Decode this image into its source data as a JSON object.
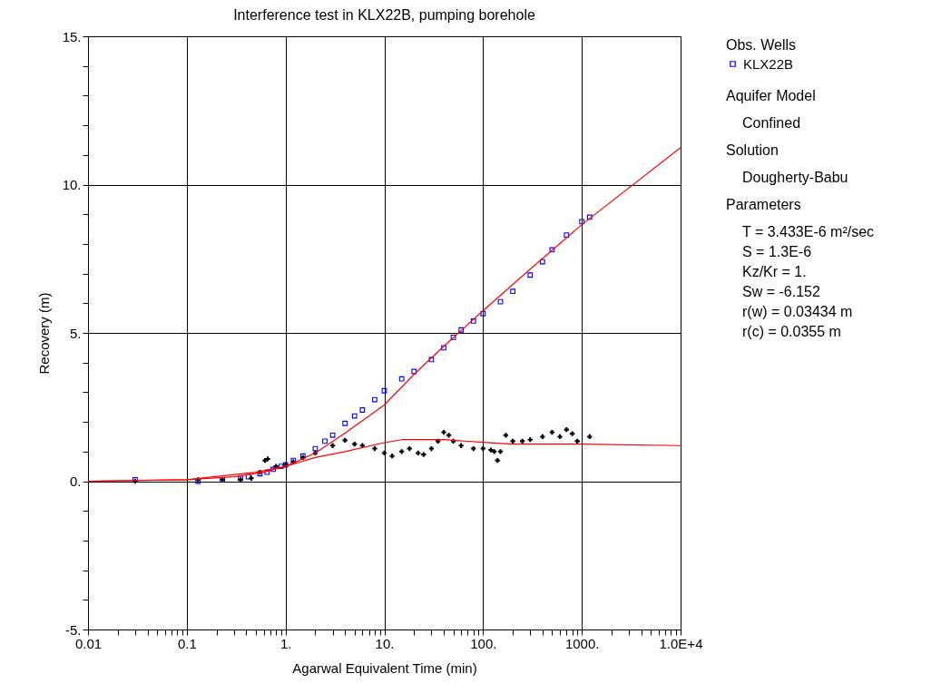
{
  "chart_data": {
    "type": "scatter",
    "title": "Interference test in KLX22B,  pumping borehole",
    "xlabel": "Agarwal Equivalent Time (min)",
    "ylabel": "Recovery (m)",
    "legend_title": "Obs. Wells",
    "legend": "right",
    "log": "x",
    "grid": true,
    "xlim": [
      0.01,
      10000
    ],
    "ylim": [
      -5,
      15
    ],
    "xticks": [
      {
        "value": 0.01,
        "label": "0.01"
      },
      {
        "value": 0.02,
        "label": null
      },
      {
        "value": 0.03,
        "label": null
      },
      {
        "value": 0.04,
        "label": null
      },
      {
        "value": 0.05,
        "label": null
      },
      {
        "value": 0.06,
        "label": null
      },
      {
        "value": 0.07,
        "label": null
      },
      {
        "value": 0.08,
        "label": null
      },
      {
        "value": 0.09,
        "label": null
      },
      {
        "value": 0.1,
        "label": "0.1"
      },
      {
        "value": 0.2,
        "label": null
      },
      {
        "value": 0.3,
        "label": null
      },
      {
        "value": 0.4,
        "label": null
      },
      {
        "value": 0.5,
        "label": null
      },
      {
        "value": 0.6,
        "label": null
      },
      {
        "value": 0.7,
        "label": null
      },
      {
        "value": 0.8,
        "label": null
      },
      {
        "value": 0.9,
        "label": null
      },
      {
        "value": 1,
        "label": "1."
      },
      {
        "value": 2,
        "label": null
      },
      {
        "value": 3,
        "label": null
      },
      {
        "value": 4,
        "label": null
      },
      {
        "value": 5,
        "label": null
      },
      {
        "value": 6,
        "label": null
      },
      {
        "value": 7,
        "label": null
      },
      {
        "value": 8,
        "label": null
      },
      {
        "value": 9,
        "label": null
      },
      {
        "value": 10,
        "label": "10."
      },
      {
        "value": 20,
        "label": null
      },
      {
        "value": 30,
        "label": null
      },
      {
        "value": 40,
        "label": null
      },
      {
        "value": 50,
        "label": null
      },
      {
        "value": 60,
        "label": null
      },
      {
        "value": 70,
        "label": null
      },
      {
        "value": 80,
        "label": null
      },
      {
        "value": 90,
        "label": null
      },
      {
        "value": 100,
        "label": "100."
      },
      {
        "value": 200,
        "label": null
      },
      {
        "value": 300,
        "label": null
      },
      {
        "value": 400,
        "label": null
      },
      {
        "value": 500,
        "label": null
      },
      {
        "value": 600,
        "label": null
      },
      {
        "value": 700,
        "label": null
      },
      {
        "value": 800,
        "label": null
      },
      {
        "value": 900,
        "label": null
      },
      {
        "value": 1000,
        "label": "1000."
      },
      {
        "value": 2000,
        "label": null
      },
      {
        "value": 3000,
        "label": null
      },
      {
        "value": 4000,
        "label": null
      },
      {
        "value": 5000,
        "label": null
      },
      {
        "value": 6000,
        "label": null
      },
      {
        "value": 7000,
        "label": null
      },
      {
        "value": 8000,
        "label": null
      },
      {
        "value": 9000,
        "label": null
      },
      {
        "value": 10000,
        "label": "1.0E+4"
      }
    ],
    "yticks": [
      {
        "value": -5,
        "label": "-5."
      },
      {
        "value": -4,
        "label": null
      },
      {
        "value": -3,
        "label": null
      },
      {
        "value": -2,
        "label": null
      },
      {
        "value": -1,
        "label": null
      },
      {
        "value": 0,
        "label": "0."
      },
      {
        "value": 1,
        "label": null
      },
      {
        "value": 2,
        "label": null
      },
      {
        "value": 3,
        "label": null
      },
      {
        "value": 4,
        "label": null
      },
      {
        "value": 5,
        "label": "5."
      },
      {
        "value": 6,
        "label": null
      },
      {
        "value": 7,
        "label": null
      },
      {
        "value": 8,
        "label": null
      },
      {
        "value": 9,
        "label": null
      },
      {
        "value": 10,
        "label": "10."
      },
      {
        "value": 11,
        "label": null
      },
      {
        "value": 12,
        "label": null
      },
      {
        "value": 13,
        "label": null
      },
      {
        "value": 14,
        "label": null
      },
      {
        "value": 15,
        "label": "15."
      }
    ],
    "series": [
      {
        "name": "KLX22B",
        "marker": "square",
        "color": "#0000ff",
        "x": [
          0.03,
          0.13,
          0.23,
          0.35,
          0.42,
          0.55,
          0.65,
          0.75,
          0.9,
          1.0,
          1.2,
          1.5,
          2,
          2.5,
          3,
          4,
          5,
          6,
          8,
          10,
          15,
          20,
          30,
          40,
          50,
          60,
          80,
          100,
          150,
          200,
          300,
          400,
          500,
          700,
          1000,
          1200
        ],
        "values": [
          0.05,
          0.0,
          0.05,
          0.1,
          0.15,
          0.25,
          0.3,
          0.4,
          0.5,
          0.55,
          0.7,
          0.85,
          1.1,
          1.35,
          1.55,
          1.95,
          2.2,
          2.4,
          2.75,
          3.05,
          3.45,
          3.7,
          4.1,
          4.5,
          4.85,
          5.1,
          5.4,
          5.65,
          6.05,
          6.4,
          6.95,
          7.4,
          7.8,
          8.3,
          8.75,
          8.9
        ]
      },
      {
        "marker": "cross",
        "color": "#000000",
        "x": [
          0.03,
          0.13,
          0.23,
          0.35,
          0.45,
          0.55,
          0.62,
          0.66,
          0.8,
          1.0,
          1.2,
          1.5,
          2,
          3,
          4,
          5,
          6,
          8,
          10,
          12,
          15,
          18,
          22,
          25,
          30,
          35,
          40,
          45,
          50,
          60,
          80,
          100,
          120,
          130,
          140,
          150,
          170,
          200,
          250,
          300,
          400,
          500,
          600,
          700,
          800,
          900,
          1200
        ],
        "values": [
          0.0,
          0.05,
          0.05,
          0.05,
          0.1,
          0.3,
          0.7,
          0.75,
          0.5,
          0.55,
          0.65,
          0.8,
          0.95,
          1.2,
          1.38,
          1.25,
          1.2,
          1.1,
          0.95,
          0.85,
          1.0,
          1.1,
          0.95,
          0.9,
          1.1,
          1.35,
          1.65,
          1.55,
          1.35,
          1.2,
          1.1,
          1.1,
          1.05,
          1.0,
          0.7,
          1.0,
          1.55,
          1.35,
          1.35,
          1.4,
          1.5,
          1.65,
          1.5,
          1.74,
          1.6,
          1.35,
          1.5
        ]
      },
      {
        "type": "line",
        "color": "#ff0000",
        "x": [
          0.01,
          0.1,
          0.3,
          0.6,
          1,
          2,
          4,
          10,
          20,
          40,
          100,
          300,
          1000,
          10000
        ],
        "values": [
          0.0,
          0.05,
          0.15,
          0.3,
          0.5,
          0.95,
          1.62,
          2.57,
          3.6,
          4.55,
          5.75,
          7.15,
          8.65,
          11.25
        ]
      },
      {
        "type": "line",
        "color": "#ff0000",
        "x": [
          0.01,
          0.1,
          0.5,
          1,
          2,
          4,
          10,
          15,
          40,
          100,
          200,
          1000,
          10000
        ],
        "values": [
          0.0,
          0.05,
          0.3,
          0.5,
          0.8,
          1.0,
          1.3,
          1.4,
          1.4,
          1.31,
          1.25,
          1.25,
          1.2
        ]
      }
    ],
    "annotations": [
      "Aquifer Model",
      "Confined",
      "Solution",
      "Dougherty-Babu",
      "Parameters",
      "T      = 3.433E-6 m²/sec",
      "S      = 1.3E-6",
      "Kz/Kr = 1.",
      "Sw    = -6.152",
      "r(w)  = 0.03434 m",
      "r(c)  = 0.0355 m"
    ]
  }
}
